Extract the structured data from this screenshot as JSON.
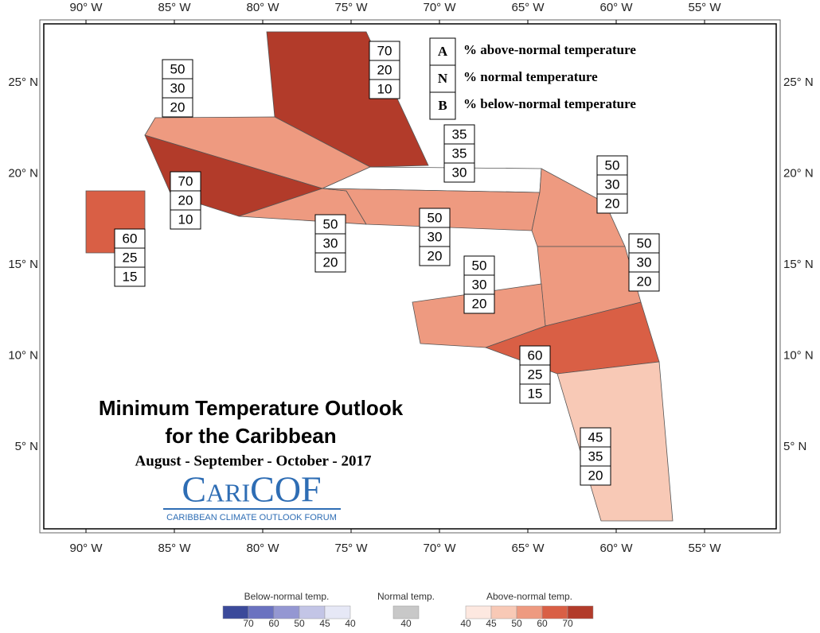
{
  "map": {
    "lon_labels": [
      "90° W",
      "85° W",
      "80° W",
      "75° W",
      "70° W",
      "65° W",
      "60° W",
      "55° W"
    ],
    "lat_labels": [
      "25° N",
      "20° N",
      "15° N",
      "10° N",
      "5° N"
    ],
    "key": [
      {
        "letter": "A",
        "text": "% above-normal temperature"
      },
      {
        "letter": "N",
        "text": "% normal temperature"
      },
      {
        "letter": "B",
        "text": "% below-normal temperature"
      }
    ],
    "regions": [
      {
        "values": [
          70,
          20,
          10
        ]
      },
      {
        "values": [
          50,
          30,
          20
        ]
      },
      {
        "values": [
          70,
          20,
          10
        ]
      },
      {
        "values": [
          60,
          25,
          15
        ]
      },
      {
        "values": [
          50,
          30,
          20
        ]
      },
      {
        "values": [
          35,
          35,
          30
        ]
      },
      {
        "values": [
          50,
          30,
          20
        ]
      },
      {
        "values": [
          50,
          30,
          20
        ]
      },
      {
        "values": [
          50,
          30,
          20
        ]
      },
      {
        "values": [
          50,
          30,
          20
        ]
      },
      {
        "values": [
          60,
          25,
          15
        ]
      },
      {
        "values": [
          45,
          35,
          20
        ]
      }
    ],
    "title": [
      "Minimum Temperature Outlook",
      "for the Caribbean"
    ],
    "subtitle": "August - September - October - 2017",
    "logo": {
      "name": "CariCOF",
      "tagline": "CARIBBEAN CLIMATE OUTLOOK FORUM"
    },
    "legend": [
      {
        "label": "Below-normal temp.",
        "levels": [
          70,
          60,
          50,
          45,
          40
        ],
        "colors": [
          "#3b4a9a",
          "#6a72c0",
          "#9497d2",
          "#c3c5e6",
          "#e6e8f6"
        ]
      },
      {
        "label": "Normal temp.",
        "levels": [
          40
        ],
        "colors": [
          "#c8c8c8"
        ]
      },
      {
        "label": "Above-normal temp.",
        "levels": [
          40,
          45,
          50,
          60,
          70
        ],
        "colors": [
          "#fde8e0",
          "#f8c9b6",
          "#ee9a80",
          "#d95f45",
          "#b23b2a"
        ]
      }
    ]
  }
}
